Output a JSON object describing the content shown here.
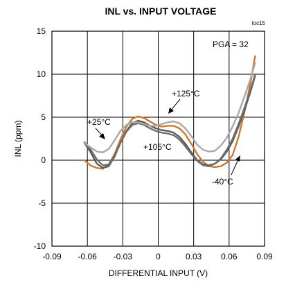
{
  "chart_data": {
    "type": "line",
    "title": "INL vs. INPUT VOLTAGE",
    "tag": "toc15",
    "xlabel": "DIFFERENTIAL INPUT (V)",
    "ylabel": "INL (ppm)",
    "xlim": [
      -0.09,
      0.09
    ],
    "ylim": [
      -10,
      15
    ],
    "xticks": [
      -0.09,
      -0.06,
      -0.03,
      0,
      0.03,
      0.06,
      0.09
    ],
    "xtick_labels": [
      "-0.09",
      "-0.06",
      "-0.03",
      "0",
      "0.03",
      "0.06",
      "0.09"
    ],
    "yticks": [
      -10,
      -5,
      0,
      5,
      10,
      15
    ],
    "ytick_labels": [
      "-10",
      "-5",
      "0",
      "5",
      "10",
      "15"
    ],
    "grid": true,
    "condition_label": "PGA = 32",
    "series": [
      {
        "name": "-40°C",
        "color": "#d2772a",
        "x": [
          -0.0625,
          -0.0575,
          -0.052,
          -0.047,
          -0.042,
          -0.037,
          -0.032,
          -0.027,
          -0.022,
          -0.017,
          -0.012,
          -0.007,
          -0.002,
          0.003,
          0.008,
          0.013,
          0.018,
          0.023,
          0.028,
          0.033,
          0.038,
          0.043,
          0.048,
          0.053,
          0.058,
          0.063,
          0.068,
          0.073,
          0.078,
          0.082
        ],
        "y": [
          0.0,
          -0.6,
          -0.9,
          -1.0,
          -0.5,
          0.7,
          2.4,
          3.9,
          4.8,
          5.1,
          4.9,
          4.5,
          4.1,
          3.9,
          4.0,
          4.0,
          3.7,
          3.0,
          1.9,
          0.7,
          -0.2,
          -0.7,
          -0.8,
          -0.7,
          -0.3,
          0.6,
          2.7,
          5.6,
          8.9,
          12.1
        ]
      },
      {
        "name": "+25°C",
        "color": "#5a5a5a",
        "x": [
          -0.0625,
          -0.0575,
          -0.052,
          -0.047,
          -0.042,
          -0.037,
          -0.032,
          -0.027,
          -0.022,
          -0.017,
          -0.012,
          -0.007,
          -0.002,
          0.003,
          0.008,
          0.013,
          0.018,
          0.023,
          0.028,
          0.033,
          0.038,
          0.043,
          0.048,
          0.053,
          0.058,
          0.063,
          0.068,
          0.073,
          0.078,
          0.082
        ],
        "y": [
          2.0,
          1.0,
          -0.4,
          -0.9,
          -0.7,
          0.4,
          2.0,
          3.4,
          4.3,
          4.6,
          4.4,
          4.0,
          3.7,
          3.5,
          3.4,
          3.2,
          2.7,
          1.9,
          0.9,
          0.0,
          -0.5,
          -0.6,
          -0.4,
          0.1,
          1.0,
          2.2,
          3.9,
          5.8,
          7.9,
          9.8
        ]
      },
      {
        "name": "+105°C",
        "color": "#6e6e6e",
        "x": [
          -0.0625,
          -0.0575,
          -0.052,
          -0.047,
          -0.042,
          -0.037,
          -0.032,
          -0.027,
          -0.022,
          -0.017,
          -0.012,
          -0.007,
          -0.002,
          0.003,
          0.008,
          0.013,
          0.018,
          0.023,
          0.028,
          0.033,
          0.038,
          0.043,
          0.048,
          0.053,
          0.058,
          0.063,
          0.068,
          0.073,
          0.078,
          0.082
        ],
        "y": [
          2.1,
          1.3,
          0.1,
          -0.6,
          -0.5,
          0.5,
          2.0,
          3.3,
          4.1,
          4.3,
          4.1,
          3.7,
          3.4,
          3.2,
          3.1,
          2.9,
          2.4,
          1.6,
          0.7,
          -0.1,
          -0.6,
          -0.7,
          -0.4,
          0.2,
          1.2,
          2.5,
          4.2,
          6.1,
          8.1,
          10.0
        ]
      },
      {
        "name": "+125°C",
        "color": "#a8a8a8",
        "x": [
          -0.0625,
          -0.0575,
          -0.052,
          -0.047,
          -0.042,
          -0.037,
          -0.032,
          -0.027,
          -0.022,
          -0.017,
          -0.012,
          -0.007,
          -0.002,
          0.003,
          0.008,
          0.013,
          0.018,
          0.023,
          0.028,
          0.033,
          0.038,
          0.043,
          0.048,
          0.053,
          0.058,
          0.063,
          0.068,
          0.073,
          0.078,
          0.082
        ],
        "y": [
          2.0,
          1.5,
          1.0,
          0.9,
          1.3,
          2.3,
          3.4,
          4.1,
          4.4,
          4.4,
          4.2,
          4.0,
          4.0,
          4.2,
          4.4,
          4.5,
          4.3,
          3.7,
          2.8,
          1.8,
          1.2,
          1.0,
          1.1,
          1.7,
          2.6,
          3.9,
          5.5,
          7.4,
          9.4,
          11.3
        ]
      }
    ],
    "annotations": [
      {
        "text": "+25°C",
        "series": "+25°C"
      },
      {
        "text": "+125°C",
        "series": "+125°C"
      },
      {
        "text": "+105°C",
        "series": "+105°C"
      },
      {
        "text": "-40°C",
        "series": "-40°C"
      }
    ]
  }
}
